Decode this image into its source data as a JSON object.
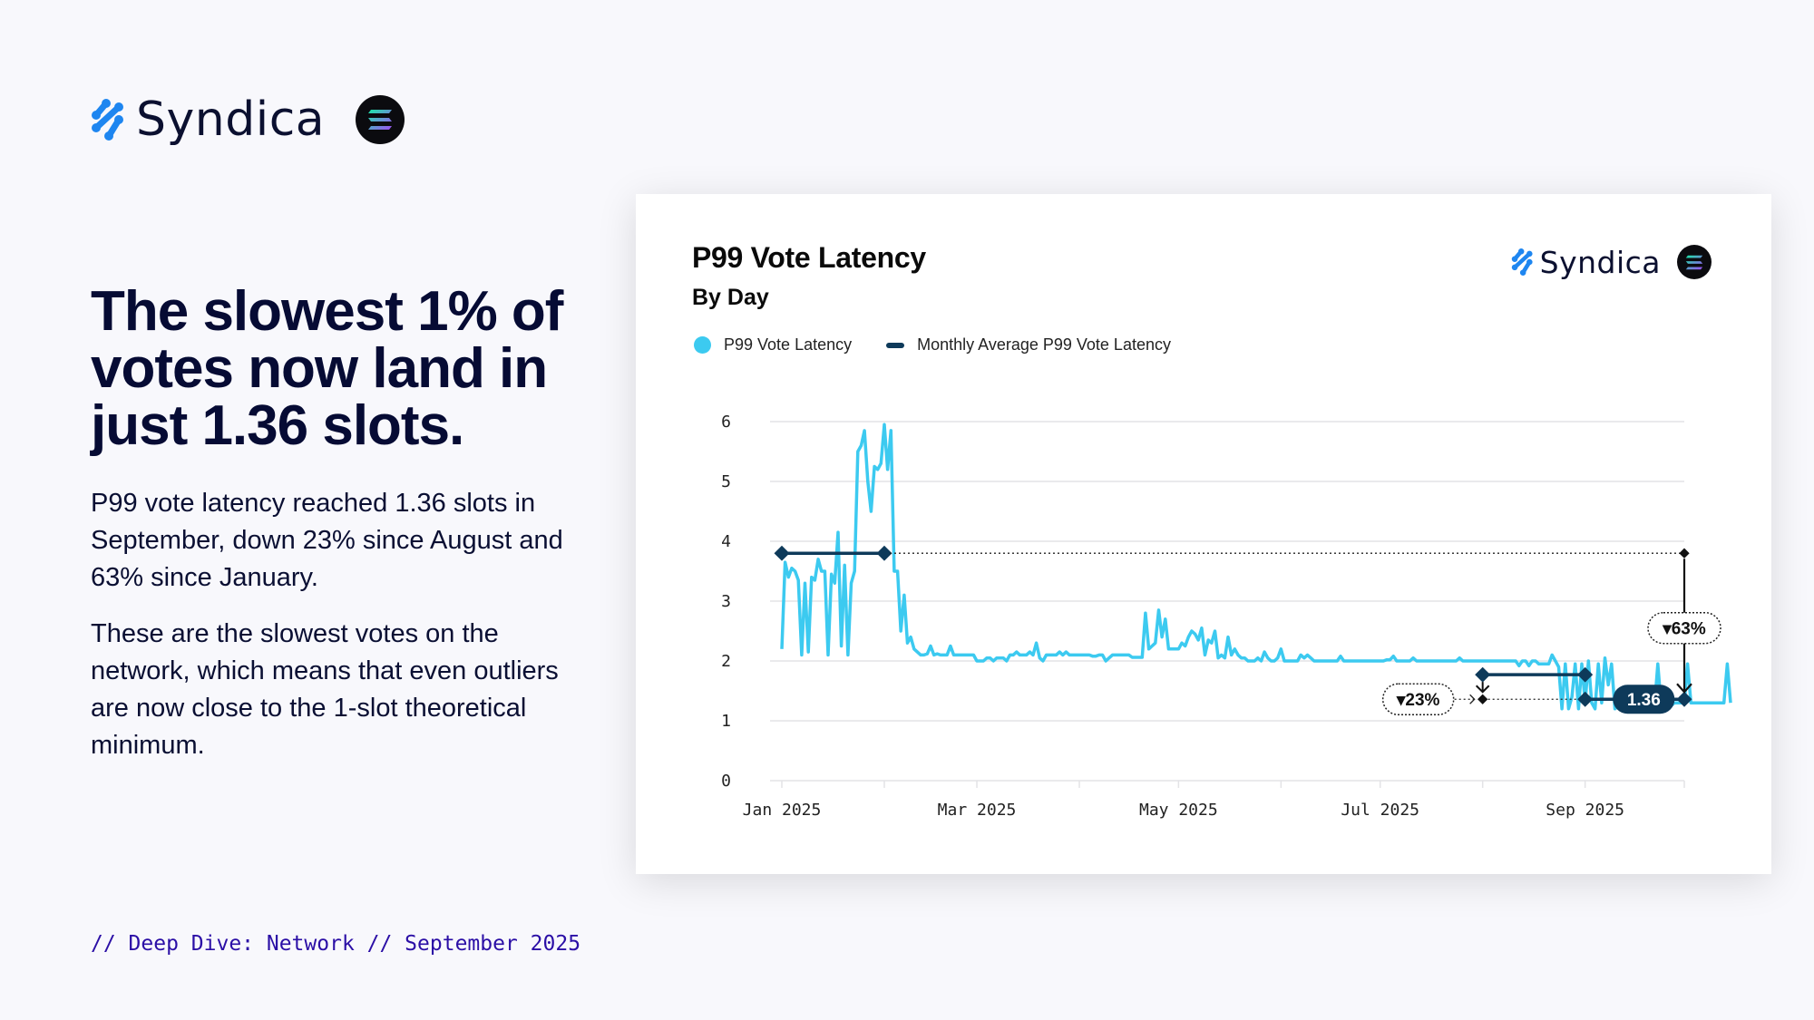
{
  "brand": {
    "name": "Syndica",
    "accent": "#1e86f0"
  },
  "headline": "The slowest 1% of votes now land in just 1.36 slots.",
  "paragraphs": [
    "P99 vote latency reached 1.36 slots in September, down 23% since August and 63% since January.",
    "These are the slowest votes on the network, which means that even outliers are now close to the 1-slot theoretical minimum."
  ],
  "footer": "// Deep Dive: Network // September 2025",
  "card": {
    "title": "P99 Vote Latency",
    "subtitle": "By Day",
    "brand_name": "Syndica"
  },
  "chart_data": {
    "type": "line",
    "title": "P99 Vote Latency",
    "subtitle": "By Day",
    "xlabel": "",
    "ylabel": "",
    "ylim": [
      0,
      6
    ],
    "yticks": [
      "0",
      "1",
      "2",
      "3",
      "4",
      "5",
      "6"
    ],
    "xticks": [
      "Jan 2025",
      "Mar 2025",
      "May 2025",
      "Jul 2025",
      "Sep 2025"
    ],
    "grid": true,
    "legend_position": "top-left",
    "start_date": "2025-01-01",
    "series": [
      {
        "name": "P99 Vote Latency",
        "color": "#3ccaf0",
        "frequency": "daily",
        "values": [
          2.2,
          3.65,
          3.4,
          3.55,
          3.5,
          3.35,
          2.1,
          3.3,
          2.15,
          3.4,
          3.35,
          3.7,
          3.5,
          3.5,
          2.1,
          3.45,
          3.3,
          4.15,
          2.25,
          3.6,
          2.1,
          3.3,
          3.5,
          5.5,
          5.6,
          5.85,
          5.0,
          4.5,
          5.25,
          5.2,
          5.3,
          5.95,
          5.2,
          5.85,
          3.5,
          3.5,
          2.5,
          3.1,
          2.3,
          2.4,
          2.2,
          2.15,
          2.1,
          2.1,
          2.12,
          2.25,
          2.1,
          2.12,
          2.1,
          2.1,
          2.1,
          2.25,
          2.1,
          2.1,
          2.1,
          2.1,
          2.1,
          2.1,
          2.1,
          2.0,
          2.0,
          2.0,
          2.05,
          2.05,
          2.0,
          2.05,
          2.05,
          2.05,
          2.0,
          2.1,
          2.1,
          2.15,
          2.1,
          2.1,
          2.1,
          2.15,
          2.1,
          2.3,
          2.05,
          2.0,
          2.1,
          2.1,
          2.1,
          2.1,
          2.15,
          2.1,
          2.15,
          2.1,
          2.1,
          2.1,
          2.1,
          2.1,
          2.1,
          2.1,
          2.08,
          2.08,
          2.1,
          2.1,
          2.0,
          2.05,
          2.1,
          2.1,
          2.1,
          2.1,
          2.1,
          2.1,
          2.06,
          2.06,
          2.06,
          2.06,
          2.8,
          2.2,
          2.25,
          2.3,
          2.85,
          2.4,
          2.7,
          2.2,
          2.2,
          2.2,
          2.2,
          2.3,
          2.25,
          2.4,
          2.5,
          2.45,
          2.35,
          2.55,
          2.1,
          2.35,
          2.3,
          2.5,
          2.05,
          2.1,
          2.05,
          2.4,
          2.1,
          2.2,
          2.1,
          2.05,
          2.05,
          2.0,
          2.0,
          2.0,
          2.05,
          2.0,
          2.15,
          2.05,
          2.0,
          2.0,
          2.05,
          2.2,
          2.0,
          2.0,
          2.0,
          2.0,
          2.0,
          2.1,
          2.05,
          2.1,
          2.05,
          2.0,
          2.0,
          2.0,
          2.0,
          2.0,
          2.0,
          2.0,
          2.0,
          2.08,
          2.0,
          2.0,
          2.0,
          2.0,
          2.0,
          2.0,
          2.0,
          2.0,
          2.0,
          2.0,
          2.0,
          2.0,
          2.0,
          2.02,
          2.02,
          2.08,
          2.0,
          2.0,
          2.0,
          2.0,
          2.0,
          2.05,
          2.0,
          2.0,
          2.0,
          2.0,
          2.0,
          2.0,
          2.0,
          2.0,
          2.0,
          2.0,
          2.0,
          2.0,
          2.0,
          2.05,
          2.0,
          2.0,
          2.0,
          2.0,
          2.0,
          2.0,
          2.0,
          2.0,
          2.0,
          2.0,
          2.0,
          2.0,
          2.0,
          2.0,
          2.0,
          2.0,
          2.0,
          1.92,
          2.0,
          2.0,
          1.92,
          2.0,
          2.0,
          1.95,
          1.95,
          1.95,
          1.95,
          2.1,
          2.0,
          1.9,
          1.2,
          1.95,
          1.2,
          1.4,
          1.95,
          1.2,
          1.95,
          1.3,
          2.0,
          1.3,
          1.2,
          1.95,
          1.3,
          2.05,
          1.6,
          1.95,
          1.2,
          1.25,
          1.25,
          1.3,
          1.25,
          1.25,
          1.3,
          1.35,
          1.25,
          1.25,
          1.3,
          1.25,
          1.25,
          1.95,
          1.25,
          1.3,
          1.3,
          1.25,
          1.3,
          1.3,
          1.3,
          1.3,
          1.95,
          1.3,
          1.3,
          1.3,
          1.3,
          1.3,
          1.3,
          1.3,
          1.3,
          1.3,
          1.3,
          1.3,
          1.95,
          1.3
        ]
      },
      {
        "name": "Monthly Average P99 Vote Latency",
        "color": "#0e3a5a",
        "segments": [
          {
            "month": "Jan 2025",
            "value": 3.8
          },
          {
            "month": "Aug 2025",
            "value": 1.77
          },
          {
            "month": "Sep 2025",
            "value": 1.36
          }
        ]
      }
    ],
    "annotations": [
      {
        "label": "23%",
        "direction": "down",
        "from_month": "Aug 2025",
        "to_month": "Sep 2025"
      },
      {
        "label": "63%",
        "direction": "down",
        "from_month": "Jan 2025",
        "to_month": "Sep 2025"
      },
      {
        "label": "1.36",
        "month": "Sep 2025",
        "value": 1.36
      }
    ]
  },
  "legend": [
    {
      "label": "P99 Vote Latency",
      "color": "#3ccaf0"
    },
    {
      "label": "Monthly Average P99 Vote Latency",
      "color": "#0e3a5a"
    }
  ]
}
